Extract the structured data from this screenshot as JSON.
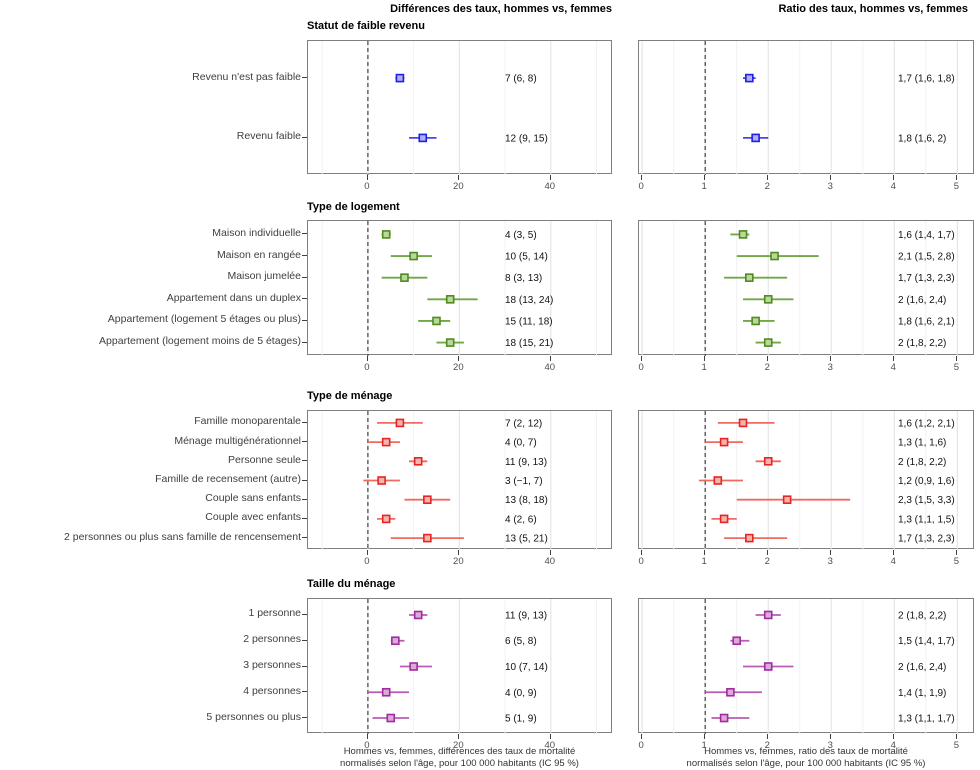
{
  "title_row": {
    "left": "Différences des taux, hommes vs, femmes",
    "right": "Ratio des taux, hommes vs, femmes"
  },
  "captions": {
    "left": [
      "Hommes vs, femmes, différences des taux de mortalité",
      "normalisés selon l'âge, pour 100 000 habitants (IC 95 %)"
    ],
    "right": [
      "Hommes vs, femmes, ratio des taux de mortalité",
      "normalisés selon l'âge, pour 100 000 habitants (IC 95 %)"
    ]
  },
  "chart_data": {
    "type": "scatter",
    "subtype": "forest-plot",
    "grid": "vertical-only",
    "panels": {
      "left": {
        "axis_ticks": [
          0,
          20,
          40
        ],
        "domain": [
          -13.1,
          53.6
        ],
        "minor_step": 10,
        "reference_line": 0
      },
      "right": {
        "axis_ticks": [
          0,
          1,
          2,
          3,
          4,
          5
        ],
        "domain": [
          -0.05,
          5.28
        ],
        "minor_step": 0.5,
        "reference_line": 1
      }
    },
    "groups": [
      {
        "title": "Statut de faible revenu",
        "colors": {
          "stroke": "#1e1ee4",
          "fill": "#b0b0f8",
          "line": "#4646e8"
        },
        "rows": [
          {
            "label": "Revenu n'est pas faible",
            "diff": {
              "est": 7,
              "lo": 6,
              "hi": 8,
              "label": "7 (6, 8)"
            },
            "ratio": {
              "est": 1.7,
              "lo": 1.6,
              "hi": 1.8,
              "label": "1,7 (1,6, 1,8)"
            }
          },
          {
            "label": "Revenu faible",
            "diff": {
              "est": 12,
              "lo": 9,
              "hi": 15,
              "label": "12 (9, 15)"
            },
            "ratio": {
              "est": 1.8,
              "lo": 1.6,
              "hi": 2.0,
              "label": "1,8 (1,6, 2)"
            }
          }
        ]
      },
      {
        "title": "Type de logement",
        "colors": {
          "stroke": "#4f8a21",
          "fill": "#bad79c",
          "line": "#70a845"
        },
        "rows": [
          {
            "label": "Maison individuelle",
            "diff": {
              "est": 4,
              "lo": 3,
              "hi": 5,
              "label": "4 (3, 5)"
            },
            "ratio": {
              "est": 1.6,
              "lo": 1.4,
              "hi": 1.7,
              "label": "1,6 (1,4, 1,7)"
            }
          },
          {
            "label": "Maison en rangée",
            "diff": {
              "est": 10,
              "lo": 5,
              "hi": 14,
              "label": "10 (5, 14)"
            },
            "ratio": {
              "est": 2.1,
              "lo": 1.5,
              "hi": 2.8,
              "label": "2,1 (1,5, 2,8)"
            }
          },
          {
            "label": "Maison jumelée",
            "diff": {
              "est": 8,
              "lo": 3,
              "hi": 13,
              "label": "8 (3, 13)"
            },
            "ratio": {
              "est": 1.7,
              "lo": 1.3,
              "hi": 2.3,
              "label": "1,7 (1,3, 2,3)"
            }
          },
          {
            "label": "Appartement dans un duplex",
            "diff": {
              "est": 18,
              "lo": 13,
              "hi": 24,
              "label": "18 (13, 24)"
            },
            "ratio": {
              "est": 2.0,
              "lo": 1.6,
              "hi": 2.4,
              "label": "2 (1,6, 2,4)"
            }
          },
          {
            "label": "Appartement (logement 5 étages ou plus)",
            "diff": {
              "est": 15,
              "lo": 11,
              "hi": 18,
              "label": "15 (11, 18)"
            },
            "ratio": {
              "est": 1.8,
              "lo": 1.6,
              "hi": 2.1,
              "label": "1,8 (1,6, 2,1)"
            }
          },
          {
            "label": "Appartement (logement moins de 5 étages)",
            "diff": {
              "est": 18,
              "lo": 15,
              "hi": 21,
              "label": "18 (15, 21)"
            },
            "ratio": {
              "est": 2.0,
              "lo": 1.8,
              "hi": 2.2,
              "label": "2 (1,8, 2,2)"
            }
          }
        ]
      },
      {
        "title": "Type de ménage",
        "colors": {
          "stroke": "#e62520",
          "fill": "#f6b3ae",
          "line": "#ef6a61"
        },
        "rows": [
          {
            "label": "Famille monoparentale",
            "diff": {
              "est": 7,
              "lo": 2,
              "hi": 12,
              "label": "7 (2, 12)"
            },
            "ratio": {
              "est": 1.6,
              "lo": 1.2,
              "hi": 2.1,
              "label": "1,6 (1,2, 2,1)"
            }
          },
          {
            "label": "Ménage multigénérationnel",
            "diff": {
              "est": 4,
              "lo": 0,
              "hi": 7,
              "label": "4 (0, 7)"
            },
            "ratio": {
              "est": 1.3,
              "lo": 1.0,
              "hi": 1.6,
              "label": "1,3 (1, 1,6)"
            }
          },
          {
            "label": "Personne seule",
            "diff": {
              "est": 11,
              "lo": 9,
              "hi": 13,
              "label": "11 (9, 13)"
            },
            "ratio": {
              "est": 2.0,
              "lo": 1.8,
              "hi": 2.2,
              "label": "2 (1,8, 2,2)"
            }
          },
          {
            "label": "Famille de recensement (autre)",
            "diff": {
              "est": 3,
              "lo": -1,
              "hi": 7,
              "label": "3 (−1, 7)"
            },
            "ratio": {
              "est": 1.2,
              "lo": 0.9,
              "hi": 1.6,
              "label": "1,2 (0,9, 1,6)"
            }
          },
          {
            "label": "Couple sans enfants",
            "diff": {
              "est": 13,
              "lo": 8,
              "hi": 18,
              "label": "13 (8, 18)"
            },
            "ratio": {
              "est": 2.3,
              "lo": 1.5,
              "hi": 3.3,
              "label": "2,3 (1,5, 3,3)"
            }
          },
          {
            "label": "Couple avec enfants",
            "diff": {
              "est": 4,
              "lo": 2,
              "hi": 6,
              "label": "4 (2, 6)"
            },
            "ratio": {
              "est": 1.3,
              "lo": 1.1,
              "hi": 1.5,
              "label": "1,3 (1,1, 1,5)"
            }
          },
          {
            "label": "2 personnes ou plus sans famille de rencensement",
            "diff": {
              "est": 13,
              "lo": 5,
              "hi": 21,
              "label": "13 (5, 21)"
            },
            "ratio": {
              "est": 1.7,
              "lo": 1.3,
              "hi": 2.3,
              "label": "1,7 (1,3, 2,3)"
            }
          }
        ]
      },
      {
        "title": "Taille du ménage",
        "colors": {
          "stroke": "#a02aa0",
          "fill": "#daabd7",
          "line": "#b85bb5"
        },
        "rows": [
          {
            "label": "1 personne",
            "diff": {
              "est": 11,
              "lo": 9,
              "hi": 13,
              "label": "11 (9, 13)"
            },
            "ratio": {
              "est": 2.0,
              "lo": 1.8,
              "hi": 2.2,
              "label": "2 (1,8, 2,2)"
            }
          },
          {
            "label": "2 personnes",
            "diff": {
              "est": 6,
              "lo": 5,
              "hi": 8,
              "label": "6 (5, 8)"
            },
            "ratio": {
              "est": 1.5,
              "lo": 1.4,
              "hi": 1.7,
              "label": "1,5 (1,4, 1,7)"
            }
          },
          {
            "label": "3 personnes",
            "diff": {
              "est": 10,
              "lo": 7,
              "hi": 14,
              "label": "10 (7, 14)"
            },
            "ratio": {
              "est": 2.0,
              "lo": 1.6,
              "hi": 2.4,
              "label": "2 (1,6, 2,4)"
            }
          },
          {
            "label": "4 personnes",
            "diff": {
              "est": 4,
              "lo": 0,
              "hi": 9,
              "label": "4 (0, 9)"
            },
            "ratio": {
              "est": 1.4,
              "lo": 1.0,
              "hi": 1.9,
              "label": "1,4 (1, 1,9)"
            }
          },
          {
            "label": "5 personnes ou plus",
            "diff": {
              "est": 5,
              "lo": 1,
              "hi": 9,
              "label": "5 (1, 9)"
            },
            "ratio": {
              "est": 1.3,
              "lo": 1.1,
              "hi": 1.7,
              "label": "1,3 (1,1, 1,7)"
            }
          }
        ]
      }
    ]
  }
}
